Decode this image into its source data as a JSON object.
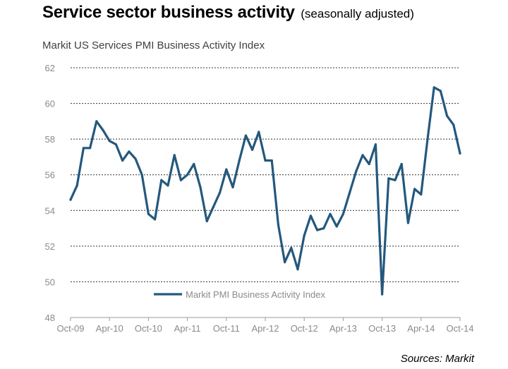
{
  "header": {
    "title": "Service sector business activity",
    "subtitle": "(seasonally adjusted)"
  },
  "footer": {
    "source": "Sources: Markit"
  },
  "colors": {
    "series": "#24587d",
    "grid": "#333333",
    "axis_text": "#8a8a8a"
  },
  "chart_data": {
    "type": "line",
    "title": "Markit US Services PMI Business Activity Index",
    "xlabel": "",
    "ylabel": "",
    "ylim": [
      48,
      62
    ],
    "yticks": [
      48,
      50,
      52,
      54,
      56,
      58,
      60,
      62
    ],
    "grid": "horizontal dashed",
    "legend_position": "bottom-center",
    "x_tick_labels": [
      "Oct-09",
      "Apr-10",
      "Oct-10",
      "Apr-11",
      "Oct-11",
      "Apr-12",
      "Oct-12",
      "Apr-13",
      "Oct-13",
      "Apr-14",
      "Oct-14"
    ],
    "x": [
      "Oct-09",
      "Nov-09",
      "Dec-09",
      "Jan-10",
      "Feb-10",
      "Mar-10",
      "Apr-10",
      "May-10",
      "Jun-10",
      "Jul-10",
      "Aug-10",
      "Sep-10",
      "Oct-10",
      "Nov-10",
      "Dec-10",
      "Jan-11",
      "Feb-11",
      "Mar-11",
      "Apr-11",
      "May-11",
      "Jun-11",
      "Jul-11",
      "Aug-11",
      "Sep-11",
      "Oct-11",
      "Nov-11",
      "Dec-11",
      "Jan-12",
      "Feb-12",
      "Mar-12",
      "Apr-12",
      "May-12",
      "Jun-12",
      "Jul-12",
      "Aug-12",
      "Sep-12",
      "Oct-12",
      "Nov-12",
      "Dec-12",
      "Jan-13",
      "Feb-13",
      "Mar-13",
      "Apr-13",
      "May-13",
      "Jun-13",
      "Jul-13",
      "Aug-13",
      "Sep-13",
      "Oct-13",
      "Nov-13",
      "Dec-13",
      "Jan-14",
      "Feb-14",
      "Mar-14",
      "Apr-14",
      "May-14",
      "Jun-14",
      "Jul-14",
      "Aug-14",
      "Sep-14",
      "Oct-14"
    ],
    "series": [
      {
        "name": "Markit PMI Business Activity Index",
        "values": [
          54.6,
          55.4,
          57.5,
          57.5,
          59.0,
          58.5,
          57.9,
          57.7,
          56.8,
          57.3,
          56.9,
          56.0,
          53.8,
          53.5,
          55.7,
          55.4,
          57.1,
          55.7,
          56.0,
          56.6,
          55.3,
          53.4,
          54.2,
          55.0,
          56.3,
          55.3,
          56.8,
          58.2,
          57.4,
          58.4,
          56.8,
          56.8,
          53.2,
          51.1,
          51.9,
          50.7,
          52.6,
          53.7,
          52.9,
          53.0,
          53.8,
          53.1,
          53.8,
          55.0,
          56.2,
          57.1,
          56.6,
          57.7,
          49.3,
          55.8,
          55.7,
          56.6,
          53.3,
          55.2,
          54.9,
          58.0,
          60.9,
          60.7,
          59.3,
          58.8,
          57.2
        ]
      }
    ]
  }
}
